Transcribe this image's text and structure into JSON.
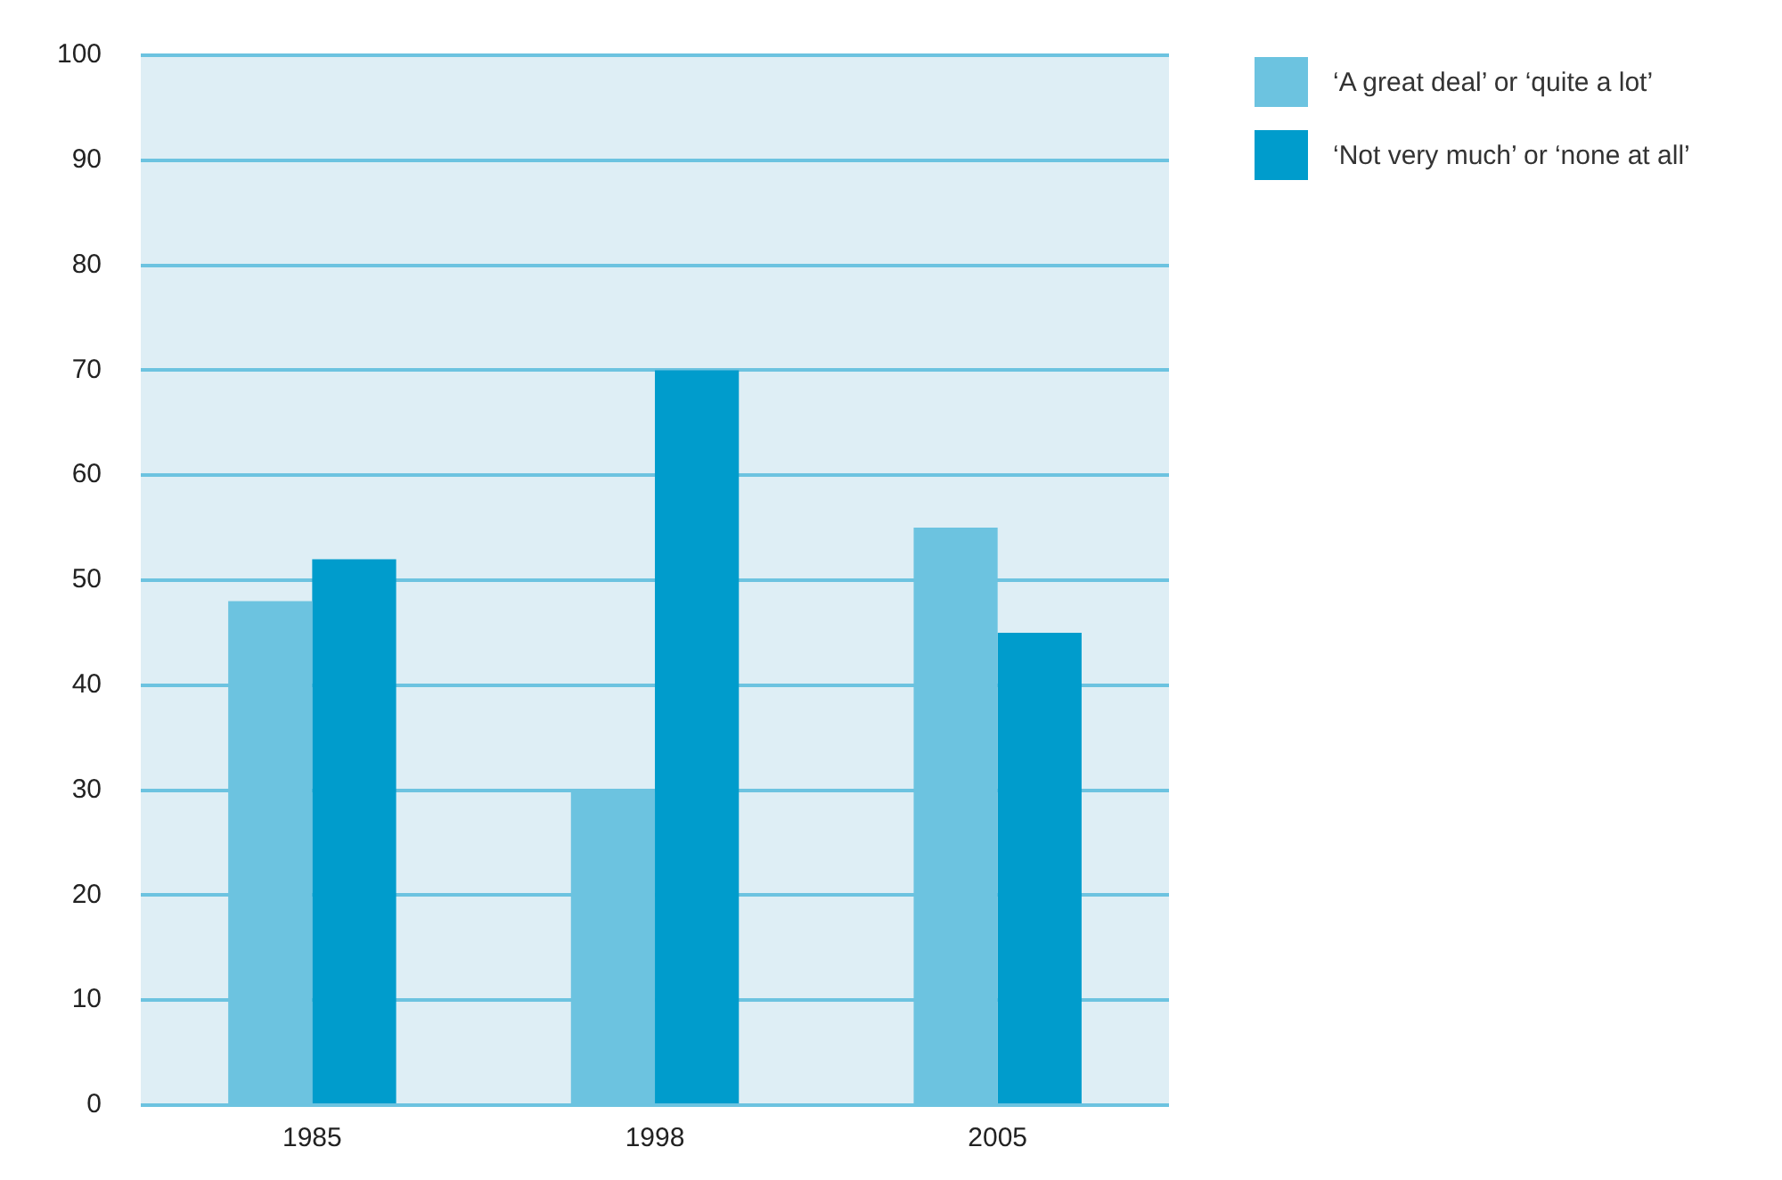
{
  "chart_data": {
    "type": "bar",
    "categories": [
      "1985",
      "1998",
      "2005"
    ],
    "series": [
      {
        "name": "‘A great deal’ or ‘quite a lot’",
        "color": "#6cc3e0",
        "values": [
          48,
          30,
          55
        ]
      },
      {
        "name": "‘Not very much’ or ‘none at all’",
        "color": "#009ccc",
        "values": [
          52,
          70,
          45
        ]
      }
    ],
    "ylim": [
      0,
      100
    ],
    "yticks": [
      0,
      10,
      20,
      30,
      40,
      50,
      60,
      70,
      80,
      90,
      100
    ],
    "grid": "y",
    "legend": "top right"
  }
}
